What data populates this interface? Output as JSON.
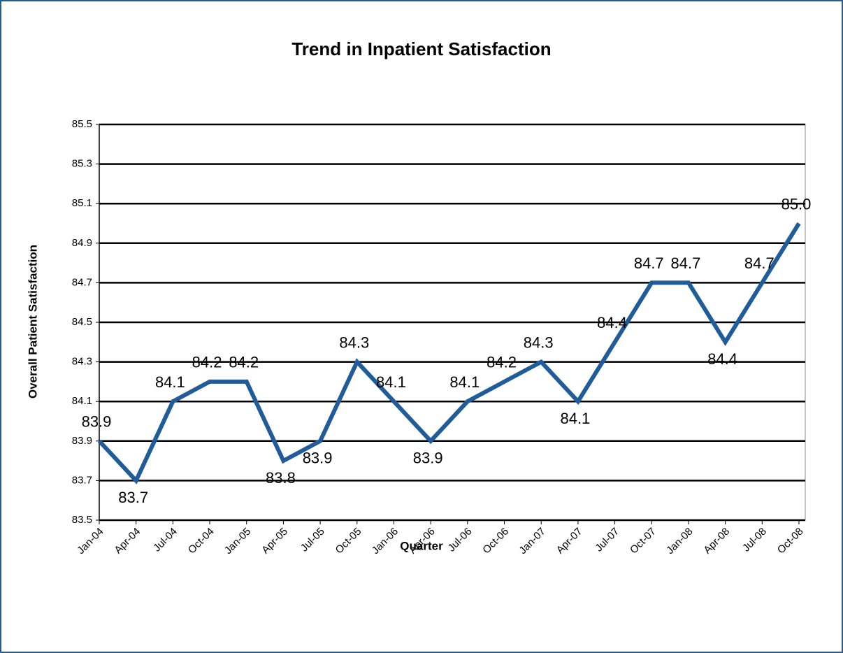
{
  "chart_data": {
    "type": "line",
    "title": "Trend in Inpatient Satisfaction",
    "x_label": "Quarter",
    "y_label": "Overall Patient Satisfaction",
    "categories": [
      "Jan-04",
      "Apr-04",
      "Jul-04",
      "Oct-04",
      "Jan-05",
      "Apr-05",
      "Jul-05",
      "Oct-05",
      "Jan-06",
      "Apr-06",
      "Jul-06",
      "Oct-06",
      "Jan-07",
      "Apr-07",
      "Jul-07",
      "Oct-07",
      "Jan-08",
      "Apr-08",
      "Jul-08",
      "Oct-08"
    ],
    "values": [
      83.9,
      83.7,
      84.1,
      84.2,
      84.2,
      83.8,
      83.9,
      84.3,
      84.1,
      83.9,
      84.1,
      84.2,
      84.3,
      84.1,
      84.4,
      84.7,
      84.7,
      84.4,
      84.7,
      85.0
    ],
    "value_labels": [
      "83.9",
      "83.7",
      "84.1",
      "84.2",
      "84.2",
      "83.8",
      "83.9",
      "84.3",
      "84.1",
      "83.9",
      "84.1",
      "84.2",
      "84.3",
      "84.1",
      "84.4",
      "84.7",
      "84.7",
      "84.4",
      "84.7",
      "85.0"
    ],
    "color": "#1f5c99",
    "ylim": [
      83.5,
      85.5
    ],
    "yticks": [
      83.5,
      83.7,
      83.9,
      84.1,
      84.3,
      84.5,
      84.7,
      84.9,
      85.1,
      85.3,
      85.5
    ],
    "grid": true
  }
}
